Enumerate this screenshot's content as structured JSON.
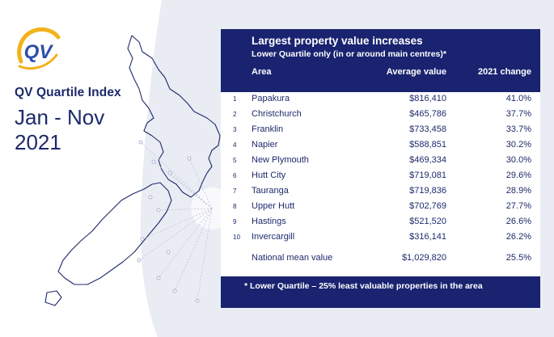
{
  "logo": {
    "text": "QV"
  },
  "brand": {
    "title": "QV Quartile Index",
    "period_line1": "Jan - Nov",
    "period_line2": "2021"
  },
  "table": {
    "title": "Largest property value increases",
    "subtitle": "Lower Quartile only (in or around main centres)*",
    "columns": {
      "area": "Area",
      "value": "Average value",
      "change": "2021 change"
    },
    "rows": [
      {
        "rank": "1",
        "area": "Papakura",
        "value": "$816,410",
        "change": "41.0%"
      },
      {
        "rank": "2",
        "area": "Christchurch",
        "value": "$465,786",
        "change": "37.7%"
      },
      {
        "rank": "3",
        "area": "Franklin",
        "value": "$733,458",
        "change": "33.7%"
      },
      {
        "rank": "4",
        "area": "Napier",
        "value": "$588,851",
        "change": "30.2%"
      },
      {
        "rank": "5",
        "area": "New Plymouth",
        "value": "$469,334",
        "change": "30.0%"
      },
      {
        "rank": "6",
        "area": "Hutt City",
        "value": "$719,081",
        "change": "29.6%"
      },
      {
        "rank": "7",
        "area": "Tauranga",
        "value": "$719,836",
        "change": "28.9%"
      },
      {
        "rank": "8",
        "area": "Upper Hutt",
        "value": "$702,769",
        "change": "27.7%"
      },
      {
        "rank": "9",
        "area": "Hastings",
        "value": "$521,520",
        "change": "26.6%"
      },
      {
        "rank": "10",
        "area": "Invercargill",
        "value": "$316,141",
        "change": "26.2%"
      }
    ],
    "national": {
      "area": "National mean value",
      "value": "$1,029,820",
      "change": "25.5%"
    },
    "footnote": "* Lower Quartile – 25% least valuable properties in the area"
  },
  "colors": {
    "navy": "#1a2370",
    "text": "#1d2a6b",
    "background": "#e9ecf3",
    "logo_gold": "#f2b21b",
    "logo_blue": "#2a4ea8"
  }
}
